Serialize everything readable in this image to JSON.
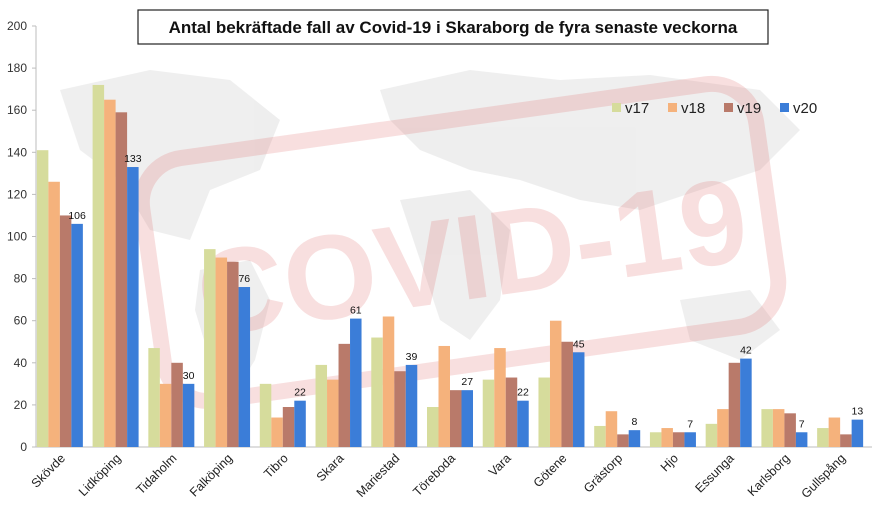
{
  "chart_data": {
    "type": "bar",
    "title": "Antal bekräftade fall av Covid-19 i Skaraborg de fyra senaste veckorna",
    "xlabel": "",
    "ylabel": "",
    "ylim": [
      0,
      200
    ],
    "yticks": [
      "0",
      "20",
      "40",
      "60",
      "80",
      "100",
      "120",
      "140",
      "160",
      "180",
      "200"
    ],
    "grid": false,
    "legend_position": "top-right",
    "categories": [
      "Skövde",
      "Lidköping",
      "Tidaholm",
      "Falköping",
      "Tibro",
      "Skara",
      "Mariestad",
      "Töreboda",
      "Vara",
      "Götene",
      "Grästorp",
      "Hjo",
      "Essunga",
      "Karlsborg",
      "Gullspång"
    ],
    "series": [
      {
        "name": "v17",
        "color": "#d6dc9c",
        "values": [
          141,
          172,
          47,
          94,
          30,
          39,
          52,
          19,
          32,
          33,
          10,
          7,
          11,
          18,
          9
        ]
      },
      {
        "name": "v18",
        "color": "#f5b27c",
        "values": [
          126,
          165,
          30,
          90,
          14,
          32,
          62,
          48,
          47,
          60,
          17,
          9,
          18,
          18,
          14
        ]
      },
      {
        "name": "v19",
        "color": "#b97a6a",
        "values": [
          110,
          159,
          40,
          88,
          19,
          49,
          36,
          27,
          33,
          50,
          6,
          7,
          40,
          16,
          6
        ]
      },
      {
        "name": "v20",
        "color": "#3b7dd8",
        "values": [
          106,
          133,
          30,
          76,
          22,
          61,
          39,
          27,
          22,
          45,
          8,
          7,
          42,
          7,
          13
        ]
      }
    ],
    "data_labels": [
      "106",
      "133",
      "30",
      "76",
      "22",
      "61",
      "39",
      "27",
      "22",
      "45",
      "8",
      "7",
      "42",
      "7",
      "13"
    ]
  }
}
